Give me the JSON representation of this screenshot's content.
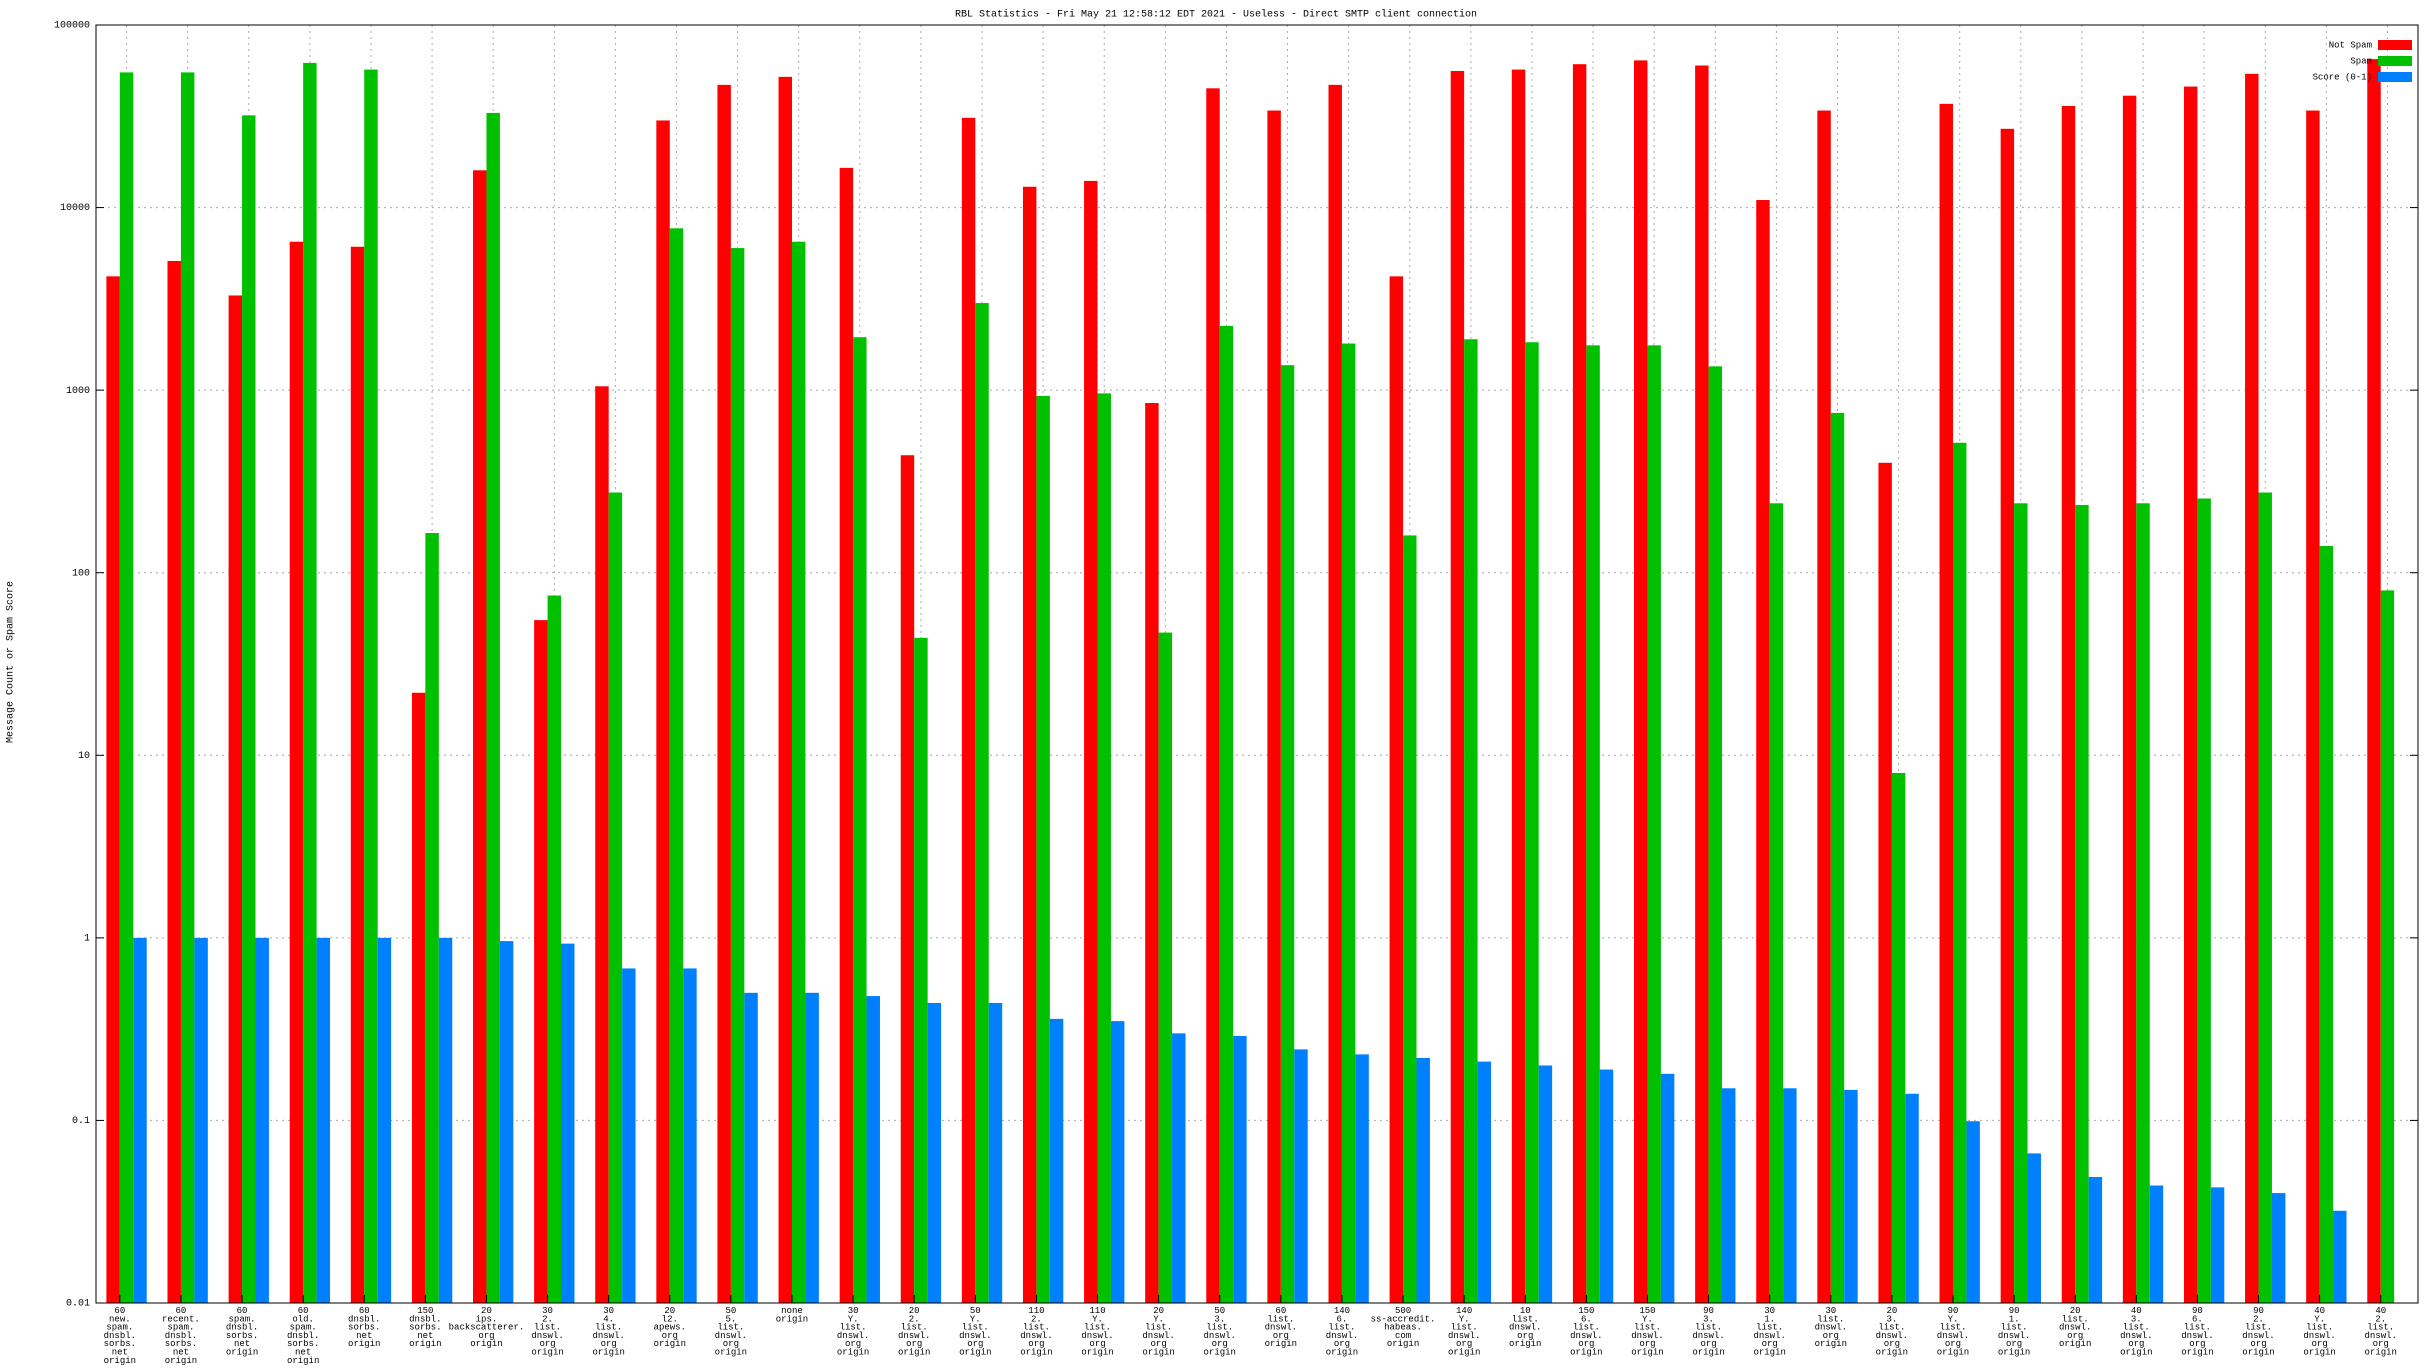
{
  "chart_data": {
    "type": "bar",
    "title": "RBL Statistics - Fri May 21 12:58:12 EDT 2021 - Useless - Direct SMTP client connection",
    "ylabel": "Message Count or Spam Score",
    "log_scale": true,
    "grid": true,
    "legend_position": "top-right",
    "ylim": [
      0.01,
      100000
    ],
    "yticks": [
      0.01,
      0.1,
      1,
      10,
      100,
      1000,
      10000,
      100000
    ],
    "categories": [
      [
        "60",
        "new.",
        "spam.",
        "dnsbl.",
        "sorbs.",
        "net",
        "origin"
      ],
      [
        "60",
        "recent.",
        "spam.",
        "dnsbl.",
        "sorbs.",
        "net",
        "origin"
      ],
      [
        "60",
        "spam.",
        "dnsbl.",
        "sorbs.",
        "net",
        "origin"
      ],
      [
        "60",
        "old.",
        "spam.",
        "dnsbl.",
        "sorbs.",
        "net",
        "origin"
      ],
      [
        "60",
        "dnsbl.",
        "sorbs.",
        "net",
        "origin"
      ],
      [
        "150",
        "dnsbl.",
        "sorbs.",
        "net",
        "origin"
      ],
      [
        "20",
        "ips.",
        "backscatterer.",
        "org",
        "origin"
      ],
      [
        "30",
        "2.",
        "list.",
        "dnswl.",
        "org",
        "origin"
      ],
      [
        "30",
        "4.",
        "list.",
        "dnswl.",
        "org",
        "origin"
      ],
      [
        "20",
        "l2.",
        "apews.",
        "org",
        "origin"
      ],
      [
        "50",
        "5.",
        "list.",
        "dnswl.",
        "org",
        "origin"
      ],
      [
        "none",
        "origin"
      ],
      [
        "30",
        "Y.",
        "list.",
        "dnswl.",
        "org",
        "origin"
      ],
      [
        "20",
        "2.",
        "list.",
        "dnswl.",
        "org",
        "origin"
      ],
      [
        "50",
        "Y.",
        "list.",
        "dnswl.",
        "org",
        "origin"
      ],
      [
        "110",
        "2.",
        "list.",
        "dnswl.",
        "org",
        "origin"
      ],
      [
        "110",
        "Y.",
        "list.",
        "dnswl.",
        "org",
        "origin"
      ],
      [
        "20",
        "Y.",
        "list.",
        "dnswl.",
        "org",
        "origin"
      ],
      [
        "50",
        "3.",
        "list.",
        "dnswl.",
        "org",
        "origin"
      ],
      [
        "60",
        "list.",
        "dnswl.",
        "org",
        "origin"
      ],
      [
        "140",
        "6.",
        "list.",
        "dnswl.",
        "org",
        "origin"
      ],
      [
        "500",
        "ss-accredit.",
        "habeas.",
        "com",
        "origin"
      ],
      [
        "140",
        "Y.",
        "list.",
        "dnswl.",
        "org",
        "origin"
      ],
      [
        "10",
        "list.",
        "dnswl.",
        "org",
        "origin"
      ],
      [
        "150",
        "6.",
        "list.",
        "dnswl.",
        "org",
        "origin"
      ],
      [
        "150",
        "Y.",
        "list.",
        "dnswl.",
        "org",
        "origin"
      ],
      [
        "90",
        "3.",
        "list.",
        "dnswl.",
        "org",
        "origin"
      ],
      [
        "30",
        "1.",
        "list.",
        "dnswl.",
        "org",
        "origin"
      ],
      [
        "30",
        "list.",
        "dnswl.",
        "org",
        "origin"
      ],
      [
        "20",
        "3.",
        "list.",
        "dnswl.",
        "org",
        "origin"
      ],
      [
        "90",
        "Y.",
        "list.",
        "dnswl.",
        "org",
        "origin"
      ],
      [
        "90",
        "1.",
        "list.",
        "dnswl.",
        "org",
        "origin"
      ],
      [
        "20",
        "list.",
        "dnswl.",
        "org",
        "origin"
      ],
      [
        "40",
        "3.",
        "list.",
        "dnswl.",
        "org",
        "origin"
      ],
      [
        "90",
        "6.",
        "list.",
        "dnswl.",
        "org",
        "origin"
      ],
      [
        "90",
        "2.",
        "list.",
        "dnswl.",
        "org",
        "origin"
      ],
      [
        "40",
        "Y.",
        "list.",
        "dnswl.",
        "org",
        "origin"
      ],
      [
        "40",
        "2.",
        "list.",
        "dnswl.",
        "org",
        "origin"
      ]
    ],
    "series": [
      {
        "name": "Not Spam",
        "color": "#ff0000",
        "values": [
          4200,
          5100,
          3300,
          6500,
          6100,
          22,
          16000,
          55,
          1050,
          30000,
          47000,
          52000,
          16500,
          440,
          31000,
          13000,
          14000,
          850,
          45000,
          34000,
          47000,
          4200,
          56000,
          57000,
          61000,
          64000,
          60000,
          11000,
          34000,
          400,
          37000,
          27000,
          36000,
          41000,
          46000,
          54000,
          34000,
          65000
        ]
      },
      {
        "name": "Spam",
        "color": "#00c000",
        "values": [
          55000,
          55000,
          32000,
          62000,
          57000,
          165,
          33000,
          75,
          275,
          7700,
          6000,
          6500,
          1950,
          44,
          3000,
          930,
          960,
          47,
          2250,
          1370,
          1800,
          160,
          1900,
          1830,
          1760,
          1760,
          1350,
          240,
          750,
          8,
          515,
          240,
          235,
          240,
          255,
          275,
          140,
          80
        ]
      },
      {
        "name": "Score (0-1)",
        "color": "#0080ff",
        "values": [
          1,
          1,
          1,
          1,
          1,
          1,
          0.96,
          0.93,
          0.68,
          0.68,
          0.5,
          0.5,
          0.48,
          0.44,
          0.44,
          0.36,
          0.35,
          0.3,
          0.29,
          0.245,
          0.23,
          0.22,
          0.21,
          0.2,
          0.19,
          0.18,
          0.15,
          0.15,
          0.147,
          0.14,
          0.099,
          0.066,
          0.049,
          0.044,
          0.043,
          0.04,
          0.032,
          null
        ]
      }
    ]
  }
}
